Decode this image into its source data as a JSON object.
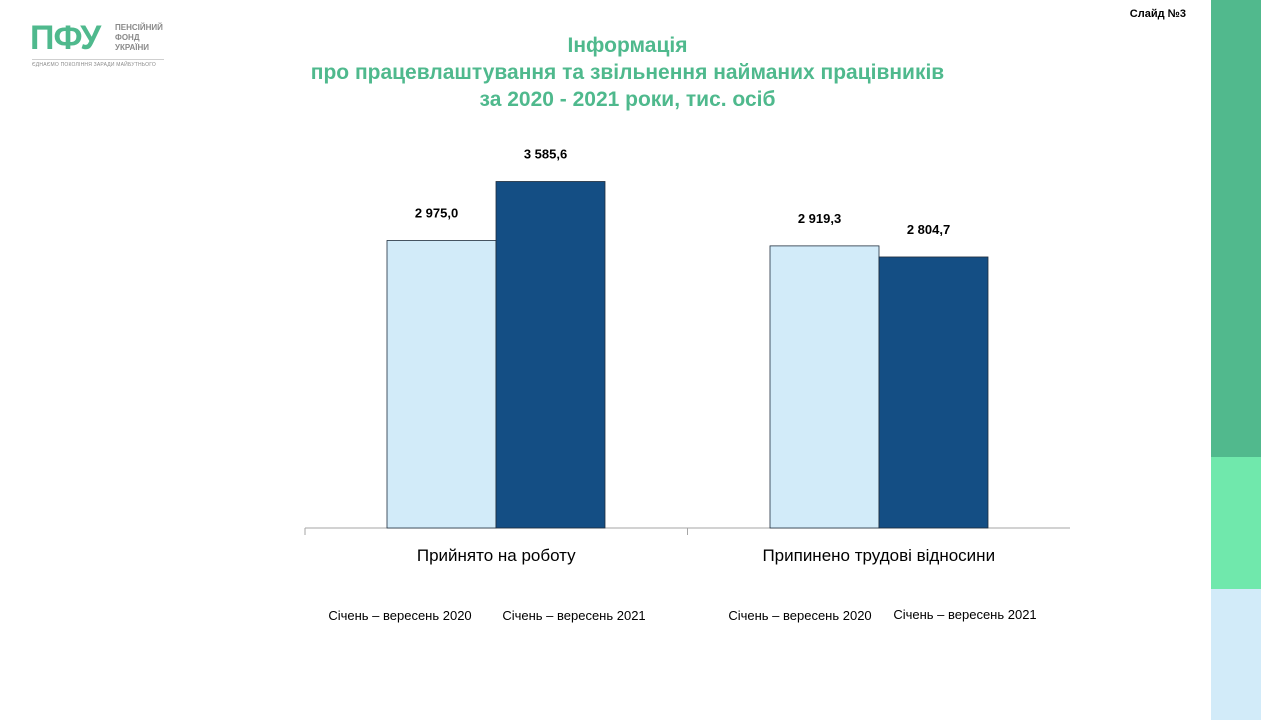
{
  "logo": {
    "mark": "ПФУ",
    "words": [
      "ПЕНСІЙНИЙ",
      "ФОНД",
      "УКРАЇНИ"
    ],
    "slogan": "ЄДНАЄМО ПОКОЛІННЯ ЗАРАДИ МАЙБУТНЬОГО"
  },
  "slide_number": "Слайд №3",
  "colors": {
    "title": "#4fb98d",
    "series_2020": "#d2ebf9",
    "series_2021": "#144e84",
    "stripe_top": "#51b98d",
    "stripe_mid": "#70e8ac",
    "stripe_bottom": "#d2ebf9"
  },
  "chart_data": {
    "type": "bar",
    "title": [
      "Інформація",
      "про працевлаштування та звільнення найманих працівників",
      "за 2020 - 2021  роки,  тис. осіб"
    ],
    "categories": [
      "Прийнято на роботу",
      "Припинено трудові відносини"
    ],
    "series": [
      {
        "name": "Січень – вересень 2020",
        "values": [
          2975.0,
          2919.3
        ],
        "labels": [
          "2 975,0",
          "2 919,3"
        ]
      },
      {
        "name": "Січень – вересень 2021",
        "values": [
          3585.6,
          2804.7
        ],
        "labels": [
          "3 585,6",
          "2 804,7"
        ]
      }
    ],
    "ylim": [
      0,
      3600
    ],
    "grid": false,
    "legend_position": "below each category",
    "series_labels_under_categories": [
      [
        "Січень – вересень 2020",
        "Січень – вересень 2021"
      ],
      [
        "Січень – вересень 2020",
        "Січень – вересень 2021"
      ]
    ]
  }
}
